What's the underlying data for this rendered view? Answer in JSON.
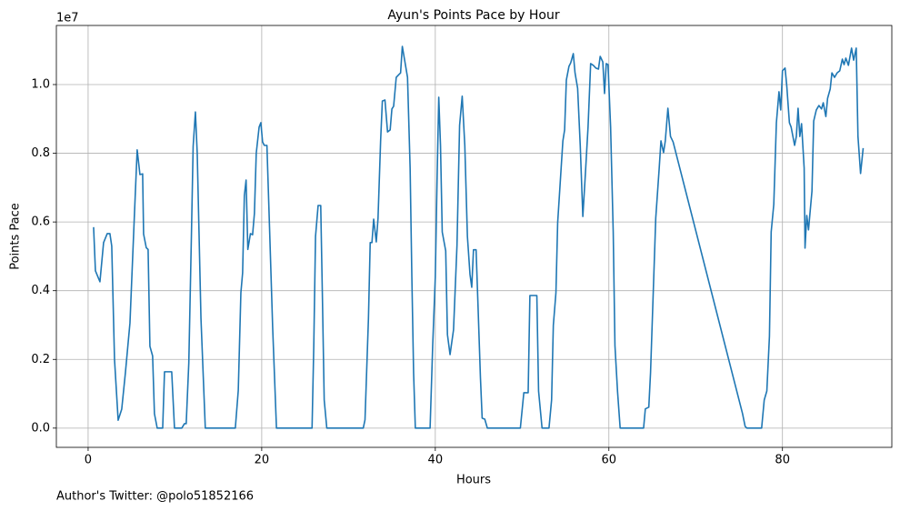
{
  "chart_data": {
    "type": "line",
    "title": "Ayun's Points Pace by Hour",
    "x_label": "Hours",
    "y_label": "Points Pace",
    "y_offset_label": "1e7",
    "note": "Author's Twitter: @polo51852166",
    "grid": true,
    "xlim": [
      -3.66,
      92.6
    ],
    "ylim": [
      -0.056,
      1.172
    ],
    "xticks": [
      0,
      20,
      40,
      60,
      80
    ],
    "yticks": [
      {
        "value": 0,
        "label": "0.0"
      },
      0.2,
      0.4,
      0.6,
      0.8,
      {
        "value": 1,
        "label": "1.0"
      }
    ],
    "x": [
      0.63,
      0.84,
      1.36,
      1.78,
      2.2,
      2.51,
      2.72,
      3.04,
      3.46,
      3.87,
      4.29,
      4.82,
      5.34,
      5.65,
      5.97,
      6.28,
      6.39,
      6.7,
      6.91,
      7.12,
      7.43,
      7.64,
      7.96,
      8.59,
      8.8,
      9.63,
      9.95,
      10.79,
      11.1,
      11.3,
      11.6,
      11.9,
      12.1,
      12.36,
      12.57,
      13.0,
      13.5,
      16.96,
      17.3,
      17.6,
      17.8,
      18.0,
      18.2,
      18.4,
      18.7,
      18.95,
      19.16,
      19.37,
      19.7,
      19.9,
      20.1,
      20.3,
      20.6,
      20.9,
      21.26,
      21.7,
      25.8,
      26.0,
      26.2,
      26.5,
      26.8,
      27.0,
      27.2,
      27.5,
      31.7,
      31.9,
      32.3,
      32.5,
      32.7,
      32.9,
      33.2,
      33.4,
      33.7,
      33.9,
      34.2,
      34.5,
      34.8,
      35.0,
      35.2,
      35.5,
      35.8,
      36.0,
      36.2,
      36.5,
      36.8,
      37.1,
      37.3,
      37.5,
      37.7,
      39.4,
      39.7,
      40.0,
      40.2,
      40.4,
      40.6,
      40.8,
      41.2,
      41.4,
      41.7,
      42.1,
      42.5,
      42.8,
      43.1,
      43.4,
      43.7,
      44.0,
      44.2,
      44.4,
      44.7,
      44.9,
      45.2,
      45.4,
      45.7,
      46.0,
      49.8,
      50.2,
      50.7,
      50.9,
      51.7,
      51.9,
      52.3,
      53.1,
      53.4,
      53.6,
      53.9,
      54.1,
      54.5,
      54.7,
      54.9,
      55.1,
      55.4,
      55.6,
      55.9,
      56.1,
      56.4,
      56.7,
      57.0,
      57.3,
      57.6,
      57.9,
      58.2,
      58.5,
      58.8,
      59.0,
      59.3,
      59.5,
      59.7,
      59.9,
      60.2,
      60.5,
      60.7,
      61.0,
      61.3,
      64.0,
      64.2,
      64.6,
      64.8,
      65.1,
      65.4,
      65.8,
      66.0,
      66.3,
      66.5,
      66.8,
      67.1,
      67.4,
      75.4,
      75.7,
      75.9,
      77.6,
      77.9,
      78.2,
      78.5,
      78.7,
      79.0,
      79.3,
      79.6,
      79.8,
      80.0,
      80.3,
      80.5,
      80.8,
      81.0,
      81.4,
      81.6,
      81.8,
      82.0,
      82.2,
      82.5,
      82.6,
      82.8,
      83.0,
      83.4,
      83.6,
      83.9,
      84.2,
      84.5,
      84.7,
      85.0,
      85.2,
      85.5,
      85.7,
      86.0,
      86.3,
      86.6,
      86.9,
      87.1,
      87.3,
      87.6,
      87.96,
      88.2,
      88.5,
      88.7,
      89.0,
      89.3
    ],
    "series": [
      {
        "name": "Points Pace",
        "color": "#1f77b4",
        "values": [
          0.585,
          0.458,
          0.426,
          0.54,
          0.566,
          0.566,
          0.53,
          0.2,
          0.023,
          0.055,
          0.16,
          0.306,
          0.625,
          0.81,
          0.738,
          0.74,
          0.565,
          0.525,
          0.52,
          0.238,
          0.21,
          0.042,
          0,
          0,
          0.164,
          0.164,
          0,
          0,
          0.013,
          0.013,
          0.19,
          0.56,
          0.82,
          0.92,
          0.8,
          0.32,
          0,
          0,
          0.11,
          0.394,
          0.452,
          0.677,
          0.722,
          0.52,
          0.566,
          0.563,
          0.625,
          0.8,
          0.876,
          0.889,
          0.833,
          0.823,
          0.823,
          0.585,
          0.294,
          0,
          0,
          0.24,
          0.558,
          0.648,
          0.648,
          0.373,
          0.082,
          0,
          0,
          0.024,
          0.32,
          0.54,
          0.54,
          0.608,
          0.542,
          0.61,
          0.836,
          0.952,
          0.955,
          0.862,
          0.868,
          0.929,
          0.937,
          1.021,
          1.029,
          1.034,
          1.111,
          1.066,
          1.021,
          0.757,
          0.439,
          0.161,
          0,
          0,
          0.24,
          0.44,
          0.717,
          0.963,
          0.823,
          0.571,
          0.516,
          0.272,
          0.214,
          0.286,
          0.532,
          0.881,
          0.966,
          0.823,
          0.558,
          0.447,
          0.41,
          0.519,
          0.519,
          0.373,
          0.148,
          0.029,
          0.026,
          0,
          0,
          0.103,
          0.103,
          0.386,
          0.386,
          0.108,
          0,
          0,
          0.082,
          0.299,
          0.394,
          0.598,
          0.757,
          0.836,
          0.868,
          1.013,
          1.053,
          1.063,
          1.09,
          1.034,
          0.989,
          0.823,
          0.616,
          0.743,
          0.876,
          1.061,
          1.056,
          1.048,
          1.045,
          1.082,
          1.066,
          0.974,
          1.061,
          1.058,
          0.876,
          0.571,
          0.24,
          0.106,
          0,
          0,
          0.056,
          0.061,
          0.161,
          0.386,
          0.611,
          0.757,
          0.836,
          0.802,
          0.836,
          0.931,
          0.849,
          0.833,
          0.042,
          0.005,
          0,
          0,
          0.082,
          0.108,
          0.267,
          0.571,
          0.651,
          0.889,
          0.979,
          0.926,
          1.04,
          1.048,
          0.995,
          0.889,
          0.876,
          0.823,
          0.849,
          0.931,
          0.849,
          0.886,
          0.757,
          0.524,
          0.619,
          0.577,
          0.69,
          0.894,
          0.926,
          0.939,
          0.929,
          0.947,
          0.907,
          0.96,
          0.987,
          1.034,
          1.021,
          1.034,
          1.04,
          1.074,
          1.058,
          1.077,
          1.056,
          1.106,
          1.071,
          1.106,
          0.849,
          0.741,
          0.815
        ]
      }
    ]
  }
}
